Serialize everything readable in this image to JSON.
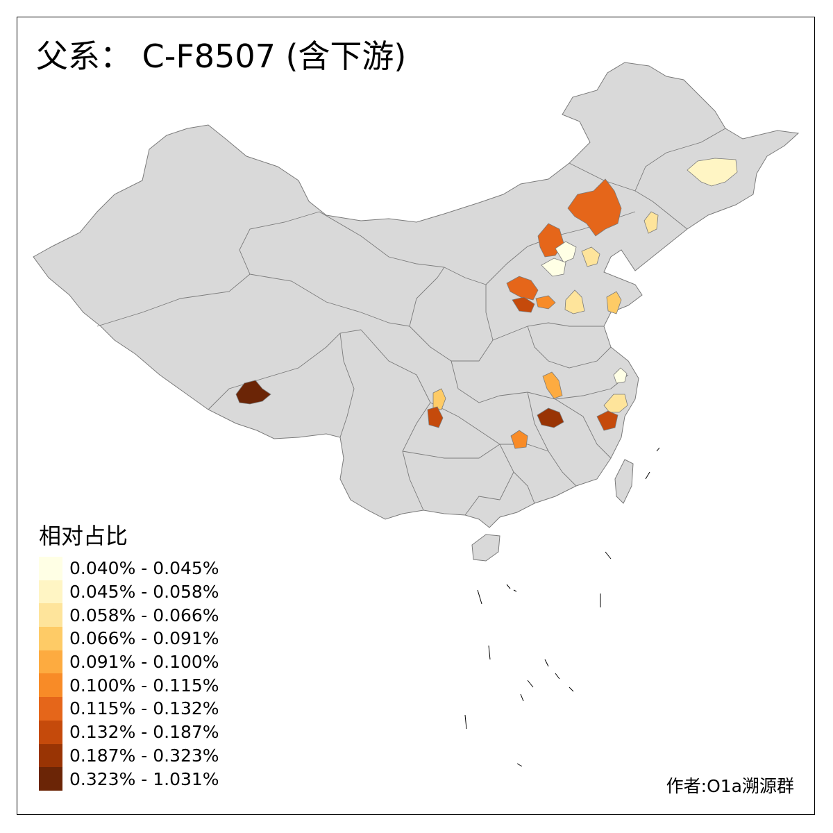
{
  "title": "父系： C-F8507 (含下游)",
  "legend": {
    "title": "相对占比",
    "bins": [
      {
        "label": "0.040% - 0.045%",
        "color": "#ffffe5"
      },
      {
        "label": "0.045% - 0.058%",
        "color": "#fff5c4"
      },
      {
        "label": "0.058% - 0.066%",
        "color": "#fee49b"
      },
      {
        "label": "0.066% - 0.091%",
        "color": "#fecb66"
      },
      {
        "label": "0.091% - 0.100%",
        "color": "#fdab40"
      },
      {
        "label": "0.100% - 0.115%",
        "color": "#f88b27"
      },
      {
        "label": "0.115% - 0.132%",
        "color": "#e5661a"
      },
      {
        "label": "0.132% - 0.187%",
        "color": "#c54a0b"
      },
      {
        "label": "0.187% - 0.323%",
        "color": "#993404"
      },
      {
        "label": "0.323% - 1.031%",
        "color": "#6b2506"
      }
    ]
  },
  "author": "作者:O1a溯源群",
  "colors": {
    "land": "#d9d9d9",
    "border": "#7a7a7a"
  },
  "regions": [
    {
      "name": "Shigatse area, Tibet",
      "bin": 9
    },
    {
      "name": "Jiamusi area, Heilongjiang",
      "bin": 1
    },
    {
      "name": "Xilingol area, Inner Mongolia",
      "bin": 6
    },
    {
      "name": "Jilin area",
      "bin": 2
    },
    {
      "name": "Zhangjiakou area, Hebei",
      "bin": 6
    },
    {
      "name": "Beijing area",
      "bin": 0
    },
    {
      "name": "Hebei central area",
      "bin": 0
    },
    {
      "name": "Hebei eastern area",
      "bin": 2
    },
    {
      "name": "Shanxi central area",
      "bin": 6
    },
    {
      "name": "Shanxi south area",
      "bin": 7
    },
    {
      "name": "Shanxi east area",
      "bin": 5
    },
    {
      "name": "Hebei south / Shandong west area",
      "bin": 2
    },
    {
      "name": "Shandong peninsula area",
      "bin": 3
    },
    {
      "name": "Jiangsu area",
      "bin": 0
    },
    {
      "name": "Anhui area",
      "bin": 4
    },
    {
      "name": "Sichuan west area",
      "bin": 3
    },
    {
      "name": "Sichuan southwest area",
      "bin": 7
    },
    {
      "name": "Hunan area",
      "bin": 5
    },
    {
      "name": "Jiangxi north area",
      "bin": 8
    },
    {
      "name": "Zhejiang area",
      "bin": 2
    },
    {
      "name": "Zhejiang south area",
      "bin": 7
    }
  ]
}
